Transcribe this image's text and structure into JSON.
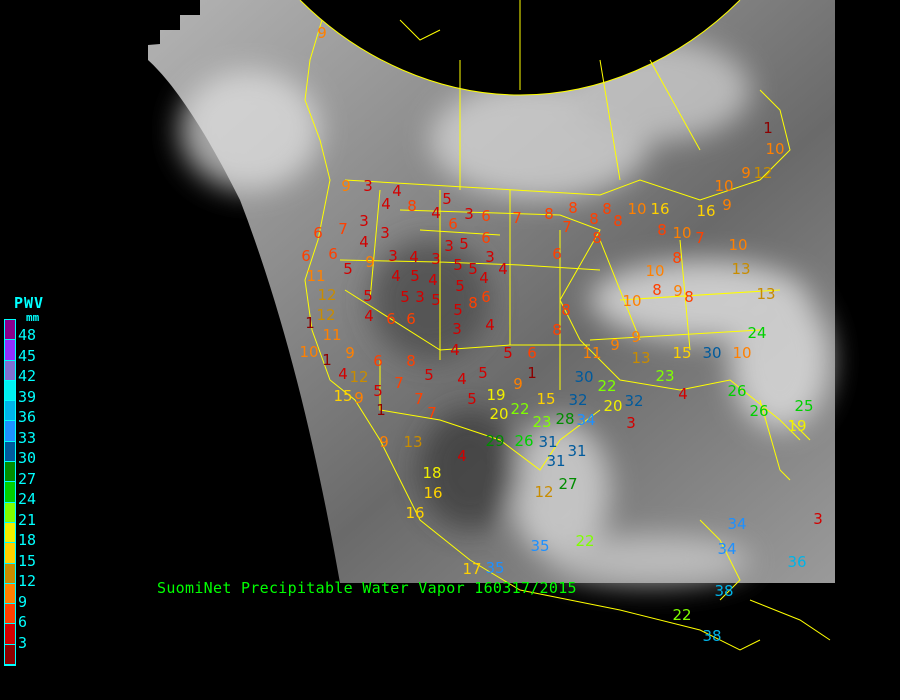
{
  "title": "SuomiNet Precipitable Water Vapor 160317/2015",
  "legend": {
    "title": "PWV",
    "unit": "mm",
    "ticks": [
      "48",
      "45",
      "42",
      "39",
      "36",
      "33",
      "30",
      "27",
      "24",
      "21",
      "18",
      "15",
      "12",
      "9",
      "6",
      "3"
    ],
    "colors": [
      "#8c008c",
      "#9030ff",
      "#8070d0",
      "#00f0f0",
      "#00b4e8",
      "#1e90ff",
      "#005a9c",
      "#008c00",
      "#00d000",
      "#80ff00",
      "#f0f000",
      "#ffd200",
      "#c88c00",
      "#ff8000",
      "#ff4000",
      "#d20000",
      "#8c0000"
    ]
  },
  "map": {
    "background": "#000000",
    "boundary_color": "#ffff00",
    "stations": [
      "9",
      "9",
      "3",
      "4",
      "4",
      "8",
      "4",
      "5",
      "3",
      "6",
      "7",
      "8",
      "8",
      "8",
      "8",
      "6",
      "7",
      "3",
      "4",
      "3",
      "3",
      "4",
      "3",
      "3",
      "5",
      "6",
      "6",
      "3",
      "5",
      "5",
      "6",
      "6",
      "9",
      "4",
      "5",
      "4",
      "5",
      "4",
      "4",
      "6",
      "11",
      "12",
      "12",
      "5",
      "5",
      "3",
      "5",
      "5",
      "8",
      "1",
      "11",
      "5",
      "4",
      "6",
      "6",
      "3",
      "4",
      "10",
      "1",
      "9",
      "4",
      "6",
      "8",
      "5",
      "4",
      "5",
      "4",
      "12",
      "9",
      "15",
      "5",
      "7",
      "7",
      "7",
      "5",
      "1",
      "9",
      "13",
      "4",
      "5",
      "6",
      "1",
      "9",
      "6",
      "7",
      "8",
      "8",
      "8",
      "10",
      "10",
      "8",
      "9",
      "8",
      "7",
      "8",
      "8",
      "10",
      "16",
      "8",
      "10",
      "16",
      "9",
      "10",
      "9",
      "12",
      "1",
      "10",
      "10",
      "13",
      "13",
      "11",
      "9",
      "9",
      "13",
      "15",
      "30",
      "10",
      "24",
      "23",
      "22",
      "30",
      "20",
      "15",
      "22",
      "23",
      "28",
      "32",
      "34",
      "32",
      "3",
      "4",
      "26",
      "26",
      "25",
      "19",
      "29",
      "26",
      "31",
      "31",
      "31",
      "27",
      "12",
      "20",
      "19",
      "18",
      "16",
      "16",
      "35",
      "22",
      "35",
      "17",
      "22",
      "38",
      "34",
      "34",
      "38",
      "36",
      "3"
    ]
  }
}
